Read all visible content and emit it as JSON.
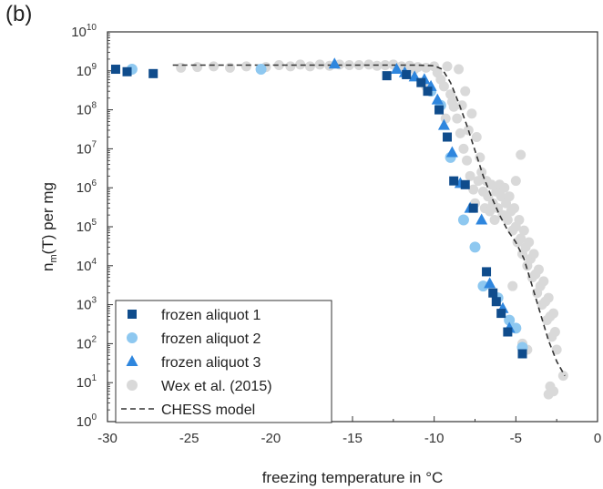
{
  "panel_label": "(b)",
  "chart_data": {
    "type": "scatter",
    "xlabel": "freezing temperature in °C",
    "ylabel": "n_m(T) per mg",
    "ylabel_main": "n",
    "ylabel_sub": "m",
    "ylabel_rest": "(T) per mg",
    "xlim": [
      -30,
      0
    ],
    "ylim_log10": [
      0,
      10
    ],
    "y_scale": "log",
    "x_ticks": [
      -30,
      -25,
      -20,
      -15,
      -10,
      -5,
      0
    ],
    "x_tick_labels": [
      "-30",
      "-25",
      "-20",
      "-15",
      "-10",
      "-5",
      "0"
    ],
    "y_tick_exponents": [
      0,
      1,
      2,
      3,
      4,
      5,
      6,
      7,
      8,
      9,
      10
    ],
    "y_tick_base": "10",
    "grid": false,
    "legend_position": "bottom-left",
    "colors": {
      "frozen_aliquot_1": "#0f4c8c",
      "frozen_aliquot_2": "#8ec8f0",
      "frozen_aliquot_3": "#2e86de",
      "wex": "#d9d9d9",
      "chess": "#333333"
    },
    "series": [
      {
        "name": "frozen aliquot 1",
        "marker": "square",
        "points": [
          [
            -29.5,
            1100000000.0
          ],
          [
            -28.8,
            950000000.0
          ],
          [
            -27.2,
            850000000.0
          ],
          [
            -12.9,
            750000000.0
          ],
          [
            -11.7,
            800000000.0
          ],
          [
            -10.8,
            500000000.0
          ],
          [
            -10.4,
            300000000.0
          ],
          [
            -9.7,
            100000000.0
          ],
          [
            -9.2,
            20000000.0
          ],
          [
            -8.8,
            1500000.0
          ],
          [
            -8.1,
            1200000.0
          ],
          [
            -7.6,
            300000.0
          ],
          [
            -6.8,
            7000.0
          ],
          [
            -6.4,
            2000.0
          ],
          [
            -6.2,
            1200.0
          ],
          [
            -5.9,
            600.0
          ],
          [
            -5.5,
            200.0
          ],
          [
            -4.6,
            55
          ]
        ]
      },
      {
        "name": "frozen aliquot 2",
        "marker": "circle",
        "points": [
          [
            -28.5,
            1100000000.0
          ],
          [
            -20.6,
            1100000000.0
          ],
          [
            -10.2,
            300000000.0
          ],
          [
            -9.6,
            130000000.0
          ],
          [
            -9.0,
            6000000.0
          ],
          [
            -8.2,
            150000.0
          ],
          [
            -7.5,
            30000.0
          ],
          [
            -7.0,
            3000.0
          ],
          [
            -6.1,
            1500.0
          ],
          [
            -5.4,
            400.0
          ],
          [
            -5.0,
            250.0
          ],
          [
            -4.6,
            80
          ]
        ]
      },
      {
        "name": "frozen aliquot 3",
        "marker": "triangle",
        "points": [
          [
            -16.1,
            1500000000.0
          ],
          [
            -12.3,
            1100000000.0
          ],
          [
            -11.8,
            900000000.0
          ],
          [
            -11.2,
            700000000.0
          ],
          [
            -10.6,
            600000000.0
          ],
          [
            -10.2,
            400000000.0
          ],
          [
            -9.8,
            180000000.0
          ],
          [
            -9.4,
            40000000.0
          ],
          [
            -8.9,
            8000000.0
          ],
          [
            -8.4,
            1300000.0
          ],
          [
            -7.8,
            300000.0
          ],
          [
            -7.1,
            150000.0
          ],
          [
            -6.6,
            3500.0
          ],
          [
            -5.8,
            800.0
          ],
          [
            -5.4,
            250.0
          ]
        ]
      },
      {
        "name": "Wex et al. (2015)",
        "marker": "circle",
        "points": [
          [
            -25.5,
            1200000000.0
          ],
          [
            -24.5,
            1250000000.0
          ],
          [
            -23.5,
            1300000000.0
          ],
          [
            -22.5,
            1200000000.0
          ],
          [
            -21.5,
            1300000000.0
          ],
          [
            -20.3,
            1250000000.0
          ],
          [
            -19.5,
            1400000000.0
          ],
          [
            -18.8,
            1300000000.0
          ],
          [
            -18.2,
            1450000000.0
          ],
          [
            -17.6,
            1300000000.0
          ],
          [
            -17.0,
            1450000000.0
          ],
          [
            -16.4,
            1350000000.0
          ],
          [
            -15.8,
            1450000000.0
          ],
          [
            -15.2,
            1400000000.0
          ],
          [
            -14.6,
            1400000000.0
          ],
          [
            -14.0,
            1450000000.0
          ],
          [
            -13.5,
            1350000000.0
          ],
          [
            -13.0,
            1400000000.0
          ],
          [
            -12.5,
            1450000000.0
          ],
          [
            -12.0,
            1300000000.0
          ],
          [
            -11.5,
            1350000000.0
          ],
          [
            -11.0,
            1250000000.0
          ],
          [
            -10.5,
            1200000000.0
          ],
          [
            -10.0,
            1300000000.0
          ],
          [
            -9.8,
            900000000.0
          ],
          [
            -9.6,
            600000000.0
          ],
          [
            -9.4,
            400000000.0
          ],
          [
            -9.2,
            1300000000.0
          ],
          [
            -9.0,
            250000000.0
          ],
          [
            -8.8,
            120000000.0
          ],
          [
            -8.6,
            60000000.0
          ],
          [
            -8.5,
            1100000000.0
          ],
          [
            -8.4,
            25000000.0
          ],
          [
            -8.2,
            10000000.0
          ],
          [
            -8.1,
            300000000.0
          ],
          [
            -8.0,
            5000000.0
          ],
          [
            -7.8,
            2000000.0
          ],
          [
            -7.7,
            80000000.0
          ],
          [
            -7.6,
            900000.0
          ],
          [
            -7.5,
            400000.0
          ],
          [
            -7.4,
            20000000.0
          ],
          [
            -7.3,
            1500000.0
          ],
          [
            -7.2,
            6000000.0
          ],
          [
            -7.1,
            2500000.0
          ],
          [
            -7.0,
            800000.0
          ],
          [
            -6.9,
            300000.0
          ],
          [
            -6.8,
            1500000.0
          ],
          [
            -6.7,
            600000.0
          ],
          [
            -6.6,
            250000.0
          ],
          [
            -6.5,
            1200000.0
          ],
          [
            -6.4,
            400000.0
          ],
          [
            -6.3,
            150000.0
          ],
          [
            -6.2,
            800000.0
          ],
          [
            -6.1,
            300000.0
          ],
          [
            -6.0,
            1200000.0
          ],
          [
            -5.9,
            600000.0
          ],
          [
            -5.8,
            200000.0
          ],
          [
            -5.7,
            1000000.0
          ],
          [
            -5.6,
            400000.0
          ],
          [
            -5.5,
            150000.0
          ],
          [
            -5.4,
            600000.0
          ],
          [
            -5.3,
            250000.0
          ],
          [
            -5.2,
            80000.0
          ],
          [
            -5.1,
            300000.0
          ],
          [
            -5.0,
            100000.0
          ],
          [
            -4.9,
            40000.0
          ],
          [
            -4.8,
            150000.0
          ],
          [
            -4.7,
            50000.0
          ],
          [
            -4.6,
            20000.0
          ],
          [
            -4.5,
            80000.0
          ],
          [
            -4.4,
            30000.0
          ],
          [
            -4.3,
            10000.0
          ],
          [
            -4.2,
            40000.0
          ],
          [
            -4.1,
            15000.0
          ],
          [
            -4.0,
            5000.0
          ],
          [
            -3.9,
            20000.0
          ],
          [
            -3.8,
            6000.0
          ],
          [
            -3.7,
            2000.0
          ],
          [
            -3.6,
            8000.0
          ],
          [
            -3.5,
            3000.0
          ],
          [
            -3.4,
            1000.0
          ],
          [
            -3.3,
            4000.0
          ],
          [
            -3.2,
            1200.0
          ],
          [
            -3.1,
            400.0
          ],
          [
            -3.0,
            1500.0
          ],
          [
            -2.9,
            500.0
          ],
          [
            -2.8,
            150.0
          ],
          [
            -2.7,
            600.0
          ],
          [
            -2.6,
            200.0
          ],
          [
            -2.5,
            70
          ],
          [
            -2.9,
            8
          ],
          [
            -3.0,
            5
          ],
          [
            -2.7,
            6
          ],
          [
            -2.1,
            15
          ],
          [
            -4.6,
            100.0
          ],
          [
            -4.3,
            70
          ],
          [
            -5.2,
            3000.0
          ],
          [
            -8.9,
            160000000.0
          ],
          [
            -10.5,
            400000000.0
          ],
          [
            -11.2,
            1100000000.0
          ],
          [
            -4.7,
            7000000.0
          ],
          [
            -5.0,
            1500000.0
          ],
          [
            -9.3,
            60000000.0
          ],
          [
            -8.3,
            130000000.0
          ],
          [
            -7.9,
            30000000.0
          ]
        ]
      }
    ],
    "model": {
      "name": "CHESS model",
      "style": "dashed",
      "points": [
        [
          -26,
          1400000000.0
        ],
        [
          -20,
          1400000000.0
        ],
        [
          -15,
          1400000000.0
        ],
        [
          -11,
          1400000000.0
        ],
        [
          -10,
          1350000000.0
        ],
        [
          -9.5,
          1100000000.0
        ],
        [
          -9.0,
          500000000.0
        ],
        [
          -8.5,
          150000000.0
        ],
        [
          -8.0,
          40000000.0
        ],
        [
          -7.5,
          9000000.0
        ],
        [
          -7.0,
          2000000.0
        ],
        [
          -6.5,
          600000.0
        ],
        [
          -6.0,
          200000.0
        ],
        [
          -5.5,
          80000.0
        ],
        [
          -5.0,
          40000.0
        ],
        [
          -4.5,
          15000.0
        ],
        [
          -4.0,
          3000.0
        ],
        [
          -3.5,
          600.0
        ],
        [
          -3.0,
          120.0
        ],
        [
          -2.5,
          35
        ],
        [
          -2.0,
          15
        ]
      ]
    }
  }
}
